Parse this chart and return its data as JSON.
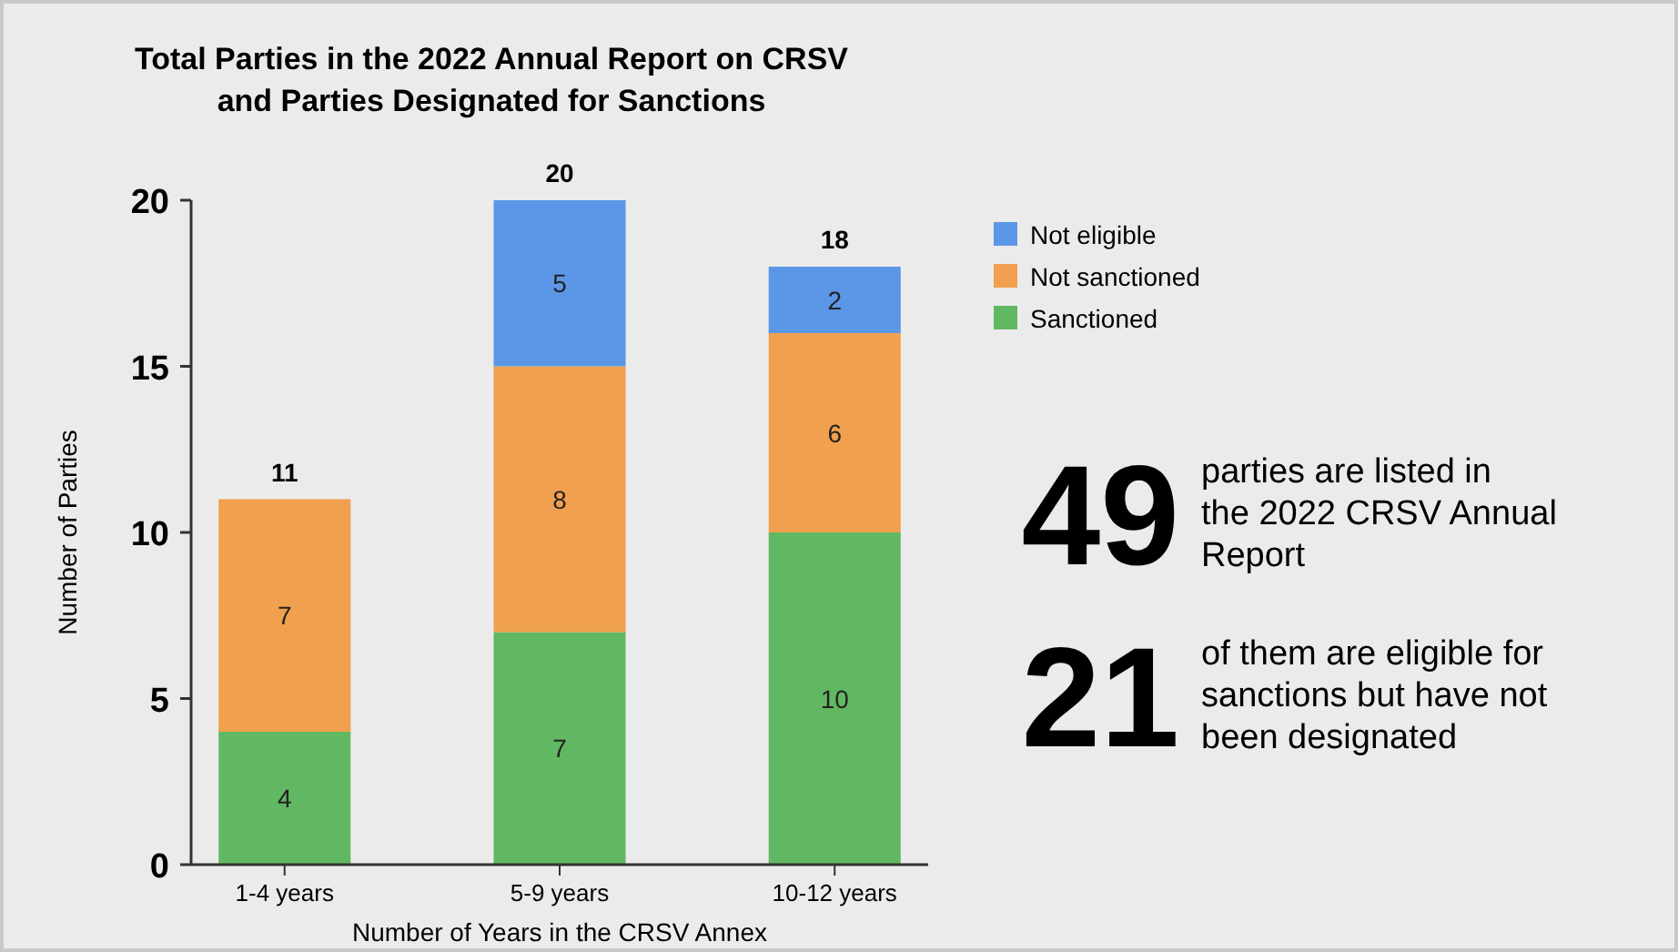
{
  "chart_data": {
    "type": "bar",
    "title": "Total Parties in the 2022 Annual Report on CRSV\nand Parties Designated for Sanctions",
    "xlabel": "Number of Years in the CRSV Annex",
    "ylabel": "Number of Parties",
    "categories": [
      "1-4 years",
      "5-9 years",
      "10-12 years"
    ],
    "stacked": true,
    "series": [
      {
        "name": "Sanctioned",
        "color": "#62b862",
        "values": [
          4,
          7,
          10
        ]
      },
      {
        "name": "Not sanctioned",
        "color": "#f0a04e",
        "values": [
          7,
          8,
          6
        ]
      },
      {
        "name": "Not eligible",
        "color": "#5b97e6",
        "values": [
          null,
          5,
          2
        ]
      }
    ],
    "totals": [
      "11",
      "20",
      "18"
    ],
    "data_labels": true,
    "ylim": [
      0,
      20
    ],
    "yticks": [
      0,
      5,
      10,
      15,
      20
    ],
    "grid": false,
    "legend": "top right",
    "annotations": [
      "49",
      "parties are listed in the 2022 CRSV Annual Report",
      "21",
      "of them are eligible for sanctions but have not been designated"
    ]
  }
}
